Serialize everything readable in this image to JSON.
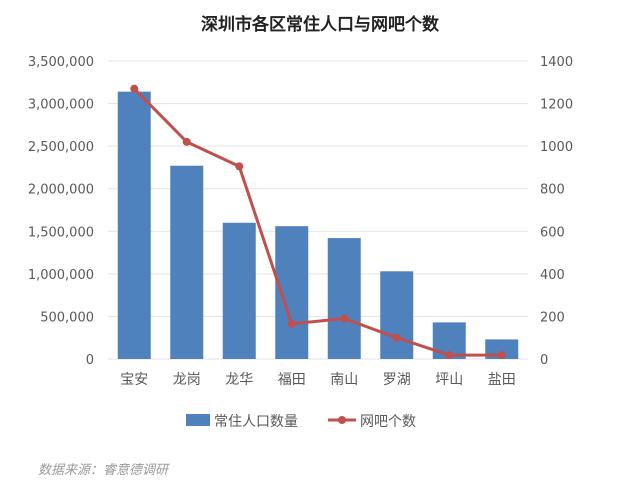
{
  "chart_data": {
    "type": "bar+line",
    "title": "深圳市各区常住人口与网吧个数",
    "categories": [
      "宝安",
      "龙岗",
      "龙华",
      "福田",
      "南山",
      "罗湖",
      "坪山",
      "盐田"
    ],
    "series": [
      {
        "name": "常住人口数量",
        "type": "bar",
        "axis": "left",
        "color": "#4F81BD",
        "values": [
          3140000,
          2270000,
          1600000,
          1560000,
          1420000,
          1030000,
          430000,
          230000
        ]
      },
      {
        "name": "网吧个数",
        "type": "line",
        "axis": "right",
        "color": "#C0504D",
        "values": [
          1270,
          1020,
          905,
          165,
          190,
          100,
          18,
          18
        ]
      }
    ],
    "y_left": {
      "range": [
        0,
        3500000
      ],
      "ticks": [
        "0",
        "500,000",
        "1,000,000",
        "1,500,000",
        "2,000,000",
        "2,500,000",
        "3,000,000",
        "3,500,000"
      ]
    },
    "y_right": {
      "range": [
        0,
        1400
      ],
      "ticks": [
        "0",
        "200",
        "400",
        "600",
        "800",
        "1000",
        "1200",
        "1400"
      ]
    },
    "grid": true,
    "legend": "bottom"
  },
  "source_note": "数据来源：睿意德调研"
}
